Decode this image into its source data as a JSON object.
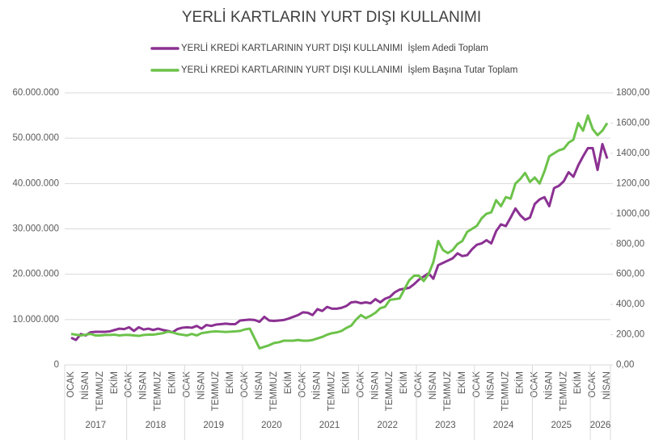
{
  "chart_data": {
    "type": "line",
    "title": "YERLİ KARTLARIN YURT DIŞI KULLANIMI",
    "categories": [
      "OCAK",
      null,
      null,
      "NİSAN",
      null,
      null,
      "TEMMUZ",
      null,
      null,
      "EKİM",
      null,
      null,
      "OCAK",
      null,
      null,
      "NİSAN",
      null,
      null,
      "TEMMUZ",
      null,
      null,
      "EKİM",
      null,
      null,
      "OCAK",
      null,
      null,
      "NİSAN",
      null,
      null,
      "TEMMUZ",
      null,
      null,
      "EKİM",
      null,
      null,
      "OCAK",
      null,
      null,
      "NİSAN",
      null,
      null,
      "TEMMUZ",
      null,
      null,
      "EKİM",
      null,
      null,
      "OCAK",
      null,
      null,
      "NİSAN",
      null,
      null,
      "TEMMUZ",
      null,
      null,
      "EKİM",
      null,
      null,
      "OCAK",
      null,
      null,
      "NİSAN",
      null,
      null,
      "TEMMUZ",
      null,
      null,
      "EKİM",
      null,
      null,
      "OCAK",
      null,
      null,
      "NİSAN",
      null,
      null,
      "TEMMUZ",
      null,
      null,
      "EKİM",
      null,
      null,
      "OCAK",
      null,
      null,
      "NİSAN",
      null,
      null,
      "TEMMUZ",
      null,
      null,
      "EKİM",
      null,
      null,
      "OCAK",
      null,
      null,
      "NİSAN",
      null,
      null,
      "TEMMUZ",
      null,
      null,
      "EKİM",
      null,
      null,
      "OCAK",
      null,
      null,
      "NİSAN"
    ],
    "year_groups": [
      "2017",
      "2018",
      "2019",
      "2020",
      "2021",
      "2022",
      "2023",
      "2024",
      "2025",
      "2026"
    ],
    "series": [
      {
        "name": "YERLİ KREDİ KARTLARININ YURT DIŞI KULLANIMI  İşlem Adedi Toplam",
        "color": "#8b3192",
        "axis": "y",
        "values": [
          6000000,
          5500000,
          6800000,
          6500000,
          7200000,
          7300000,
          7300000,
          7300000,
          7400000,
          7700000,
          8000000,
          7900000,
          8300000,
          7500000,
          8300000,
          7800000,
          8000000,
          7700000,
          8000000,
          7700000,
          7500000,
          7200000,
          7900000,
          8200000,
          8300000,
          8200000,
          8600000,
          8000000,
          8800000,
          8600000,
          8900000,
          9000000,
          9100000,
          9000000,
          9000000,
          9800000,
          9900000,
          10000000,
          9900000,
          9500000,
          10600000,
          9800000,
          9700000,
          9800000,
          9900000,
          10200000,
          10600000,
          11000000,
          11600000,
          11500000,
          11000000,
          12300000,
          11900000,
          12800000,
          12400000,
          12400000,
          12600000,
          13000000,
          13800000,
          13900000,
          13600000,
          13800000,
          13600000,
          14500000,
          13800000,
          14600000,
          15000000,
          16000000,
          16600000,
          16800000,
          17000000,
          17800000,
          18800000,
          19500000,
          20200000,
          19000000,
          22000000,
          22500000,
          23000000,
          23500000,
          24600000,
          24000000,
          24200000,
          25500000,
          26500000,
          26800000,
          27500000,
          26800000,
          29500000,
          31000000,
          30600000,
          32500000,
          34500000,
          33000000,
          32000000,
          32500000,
          35500000,
          36500000,
          37000000,
          35000000,
          39000000,
          39500000,
          40500000,
          42500000,
          41500000,
          44000000,
          46000000,
          47800000,
          47800000,
          43000000,
          48700000,
          45500000
        ]
      },
      {
        "name": "YERLİ KREDİ KARTLARININ YURT DIŞI KULLANIMI  İşlem Başına Tutar Toplam",
        "color": "#6cc24a",
        "axis": "y2",
        "values": [
          205,
          200,
          195,
          200,
          205,
          195,
          195,
          198,
          198,
          200,
          195,
          198,
          198,
          195,
          192,
          198,
          200,
          200,
          205,
          210,
          220,
          215,
          205,
          200,
          195,
          205,
          195,
          210,
          215,
          220,
          222,
          220,
          218,
          220,
          222,
          225,
          235,
          240,
          175,
          110,
          120,
          130,
          145,
          150,
          160,
          160,
          160,
          165,
          160,
          160,
          165,
          175,
          185,
          200,
          210,
          215,
          225,
          245,
          260,
          300,
          330,
          310,
          325,
          345,
          375,
          385,
          430,
          435,
          440,
          500,
          560,
          590,
          590,
          555,
          600,
          680,
          820,
          760,
          740,
          760,
          800,
          820,
          880,
          900,
          920,
          970,
          1000,
          1010,
          1090,
          1050,
          1110,
          1100,
          1200,
          1230,
          1270,
          1210,
          1240,
          1200,
          1280,
          1380,
          1400,
          1420,
          1430,
          1470,
          1490,
          1600,
          1550,
          1650,
          1560,
          1520,
          1550,
          1600
        ]
      }
    ],
    "ylim": [
      0,
      60000000
    ],
    "yticks": [
      0,
      {
        "value": 10000000,
        "label": "10.000.000"
      },
      {
        "value": 20000000,
        "label": "20.000.000"
      },
      {
        "value": 30000000,
        "label": "30.000.000"
      },
      {
        "value": 40000000,
        "label": "40.000.000"
      },
      {
        "value": 50000000,
        "label": "50.000.000"
      },
      {
        "value": 60000000,
        "label": "60.000.000"
      }
    ],
    "y2lim": [
      0,
      1800
    ],
    "y2ticks": [
      {
        "value": 0,
        "label": "0,00"
      },
      {
        "value": 200,
        "label": "200,00"
      },
      {
        "value": 400,
        "label": "400,00"
      },
      {
        "value": 600,
        "label": "600,00"
      },
      {
        "value": 800,
        "label": "800,00"
      },
      {
        "value": 1000,
        "label": "1000,00"
      },
      {
        "value": 1200,
        "label": "1200,00"
      },
      {
        "value": 1400,
        "label": "1400,00"
      },
      {
        "value": 1600,
        "label": "1600,00"
      },
      {
        "value": 1800,
        "label": "1800,00"
      }
    ],
    "grid": true
  }
}
